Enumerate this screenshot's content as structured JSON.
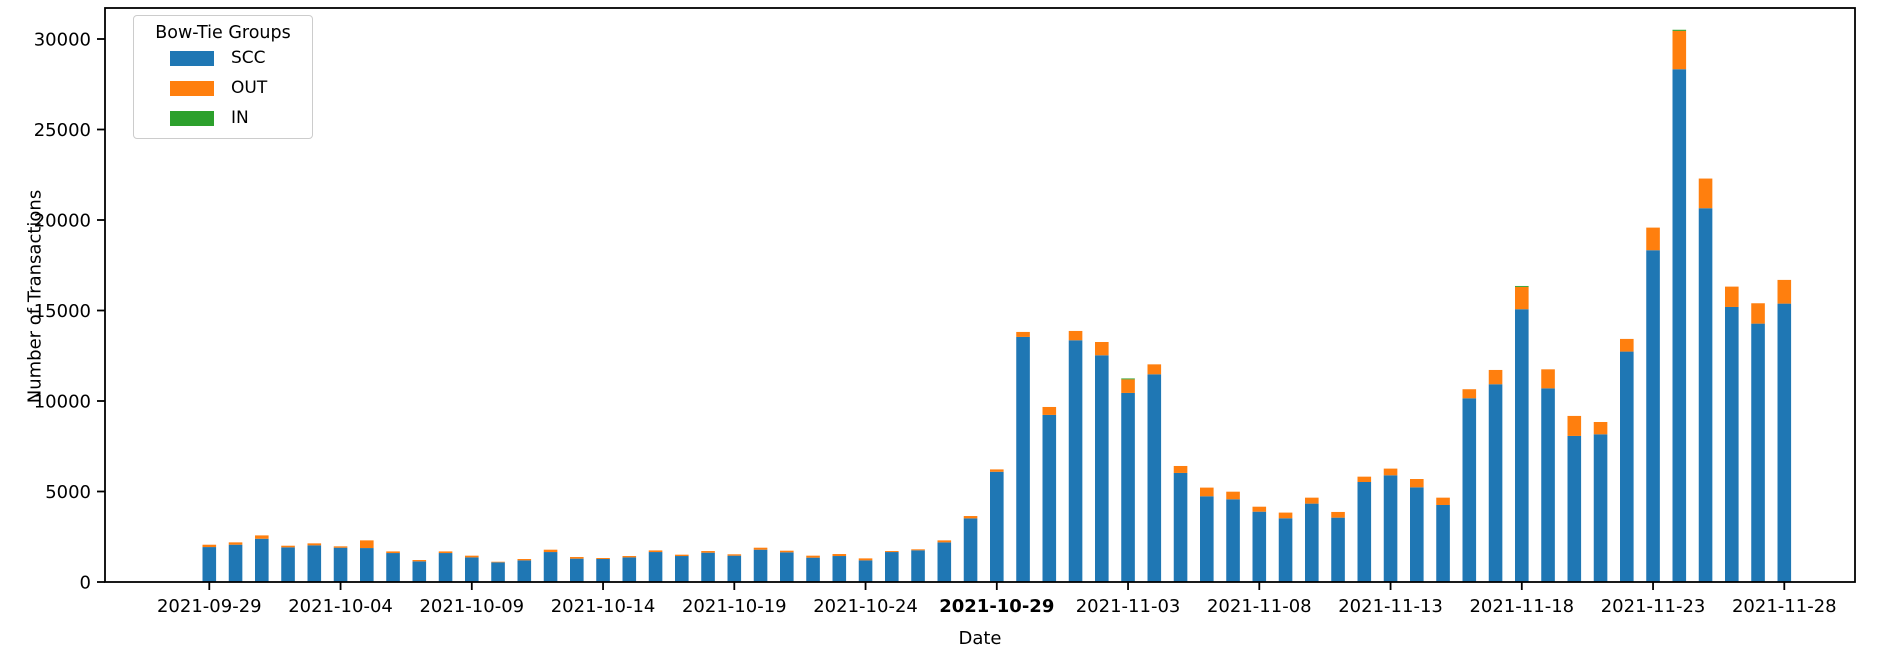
{
  "chart_data": {
    "type": "bar",
    "stacked": true,
    "title": "",
    "xlabel": "Date",
    "ylabel": "Number of Transactions",
    "ylim": [
      0,
      31500
    ],
    "grid": false,
    "yticks": [
      0,
      5000,
      10000,
      15000,
      20000,
      25000,
      30000
    ],
    "xtick_labels": [
      "2021-09-29",
      "2021-10-04",
      "2021-10-09",
      "2021-10-14",
      "2021-10-19",
      "2021-10-24",
      "2021-10-29",
      "2021-11-03",
      "2021-11-08",
      "2021-11-13",
      "2021-11-18",
      "2021-11-23",
      "2021-11-28"
    ],
    "emphasized_xtick": "2021-10-29",
    "legend": {
      "title": "Bow-Tie Groups",
      "position": "upper left",
      "entries": [
        {
          "label": "SCC",
          "color": "#1f77b4"
        },
        {
          "label": "OUT",
          "color": "#ff7f0e"
        },
        {
          "label": "IN",
          "color": "#2ca02c"
        }
      ]
    },
    "categories": [
      "2021-09-29",
      "2021-09-30",
      "2021-10-01",
      "2021-10-02",
      "2021-10-03",
      "2021-10-04",
      "2021-10-05",
      "2021-10-06",
      "2021-10-07",
      "2021-10-08",
      "2021-10-09",
      "2021-10-10",
      "2021-10-11",
      "2021-10-12",
      "2021-10-13",
      "2021-10-14",
      "2021-10-15",
      "2021-10-16",
      "2021-10-17",
      "2021-10-18",
      "2021-10-19",
      "2021-10-20",
      "2021-10-21",
      "2021-10-22",
      "2021-10-23",
      "2021-10-24",
      "2021-10-25",
      "2021-10-26",
      "2021-10-27",
      "2021-10-28",
      "2021-10-29",
      "2021-10-30",
      "2021-10-31",
      "2021-11-01",
      "2021-11-02",
      "2021-11-03",
      "2021-11-04",
      "2021-11-05",
      "2021-11-06",
      "2021-11-07",
      "2021-11-08",
      "2021-11-09",
      "2021-11-10",
      "2021-11-11",
      "2021-11-12",
      "2021-11-13",
      "2021-11-14",
      "2021-11-15",
      "2021-11-16",
      "2021-11-17",
      "2021-11-18",
      "2021-11-19",
      "2021-11-20",
      "2021-11-21",
      "2021-11-22",
      "2021-11-23",
      "2021-11-24",
      "2021-11-25",
      "2021-11-26",
      "2021-11-27",
      "2021-11-28"
    ],
    "series": [
      {
        "name": "SCC",
        "color": "#1f77b4",
        "values": [
          1930,
          2060,
          2390,
          1915,
          2025,
          1895,
          1875,
          1600,
          1140,
          1600,
          1360,
          1085,
          1195,
          1655,
          1290,
          1270,
          1360,
          1655,
          1435,
          1620,
          1455,
          1785,
          1640,
          1345,
          1435,
          1195,
          1655,
          1750,
          2190,
          3515,
          6090,
          13540,
          9230,
          13355,
          12525,
          10445,
          11475,
          6025,
          4735,
          4570,
          3885,
          3520,
          4330,
          3555,
          5525,
          5895,
          5230,
          4255,
          10150,
          10925,
          15070,
          10700,
          8070,
          8160,
          12730,
          18330,
          28330,
          20650,
          15195,
          14275,
          15380
        ]
      },
      {
        "name": "OUT",
        "color": "#ff7f0e",
        "values": [
          130,
          130,
          185,
          90,
          110,
          75,
          425,
          90,
          75,
          90,
          95,
          35,
          75,
          130,
          90,
          55,
          75,
          90,
          75,
          90,
          75,
          110,
          90,
          110,
          110,
          110,
          55,
          55,
          110,
          130,
          130,
          275,
          440,
          515,
          735,
          750,
          550,
          385,
          480,
          420,
          275,
          315,
          330,
          315,
          295,
          370,
          460,
          405,
          500,
          790,
          1235,
          1050,
          1105,
          680,
          700,
          1250,
          2120,
          1640,
          1125,
          1125,
          1310
        ]
      },
      {
        "name": "IN",
        "color": "#2ca02c",
        "values": [
          0,
          0,
          0,
          0,
          0,
          0,
          0,
          0,
          0,
          0,
          0,
          0,
          0,
          0,
          0,
          0,
          0,
          0,
          0,
          0,
          0,
          0,
          0,
          0,
          0,
          0,
          0,
          0,
          0,
          0,
          0,
          0,
          0,
          0,
          0,
          50,
          0,
          0,
          0,
          0,
          0,
          0,
          0,
          0,
          0,
          0,
          0,
          0,
          0,
          0,
          50,
          0,
          0,
          0,
          0,
          0,
          60,
          0,
          0,
          0,
          0
        ]
      }
    ]
  }
}
